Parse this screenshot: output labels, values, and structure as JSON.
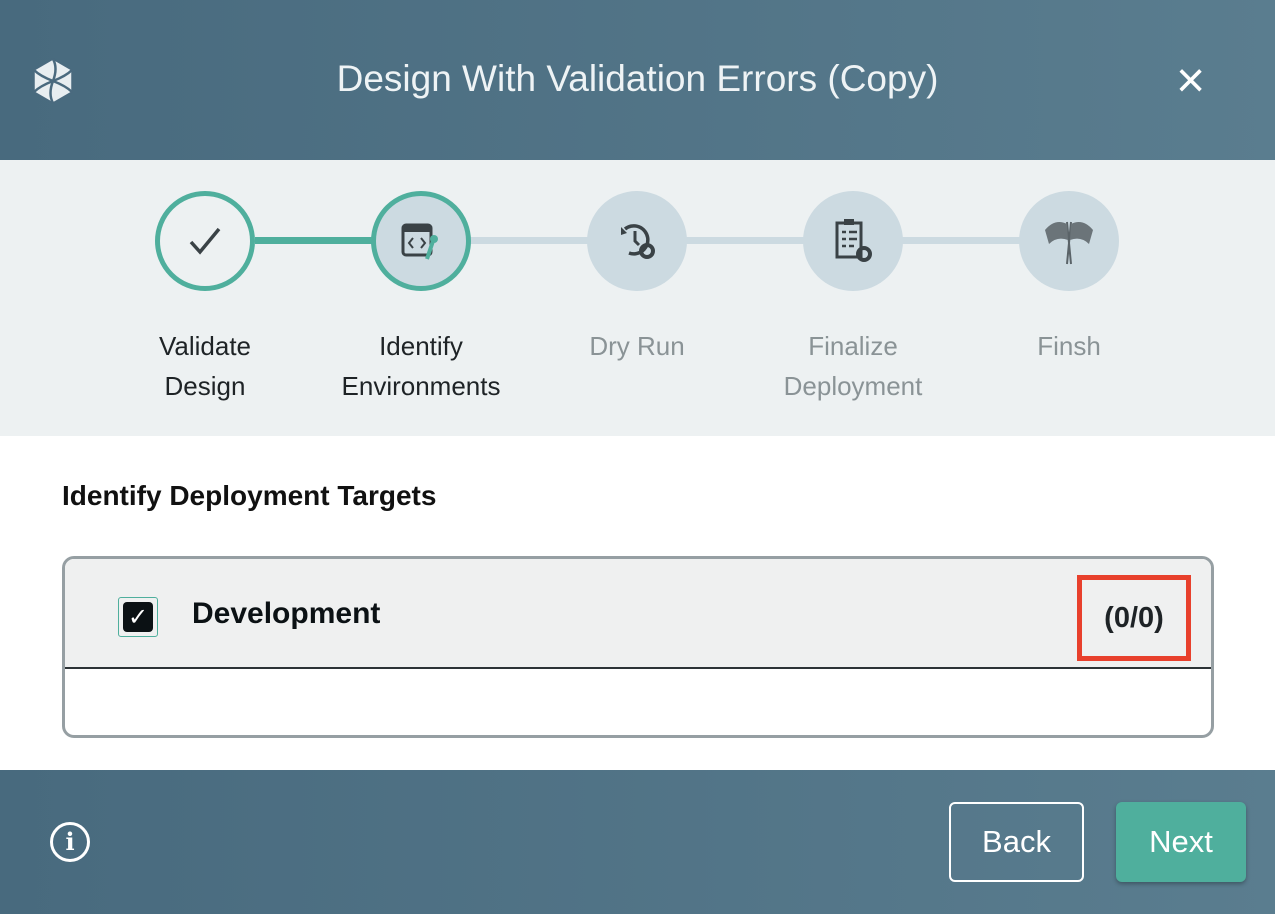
{
  "dialog": {
    "title": "Design With Validation Errors (Copy)",
    "close_icon": "×"
  },
  "steps": [
    {
      "label1": "Validate",
      "label2": "Design",
      "state": "complete",
      "icon": "check-icon"
    },
    {
      "label1": "Identify",
      "label2": "Environments",
      "state": "active",
      "icon": "code-wrench-icon"
    },
    {
      "label1": "Dry Run",
      "label2": "",
      "state": "pending",
      "icon": "history-gear-icon"
    },
    {
      "label1": "Finalize",
      "label2": "Deployment",
      "state": "pending",
      "icon": "clipboard-gear-icon"
    },
    {
      "label1": "Finsh",
      "label2": "",
      "state": "pending",
      "icon": "checkered-flags-icon"
    }
  ],
  "section": {
    "heading": "Identify Deployment Targets"
  },
  "targets": [
    {
      "name": "Development",
      "checked": true,
      "count": "(0/0)"
    }
  ],
  "footer": {
    "back_label": "Back",
    "next_label": "Next",
    "info_icon": "i"
  },
  "colors": {
    "accent": "#4faf9d",
    "header": "#4a6a7f",
    "highlight": "#e8402c"
  }
}
